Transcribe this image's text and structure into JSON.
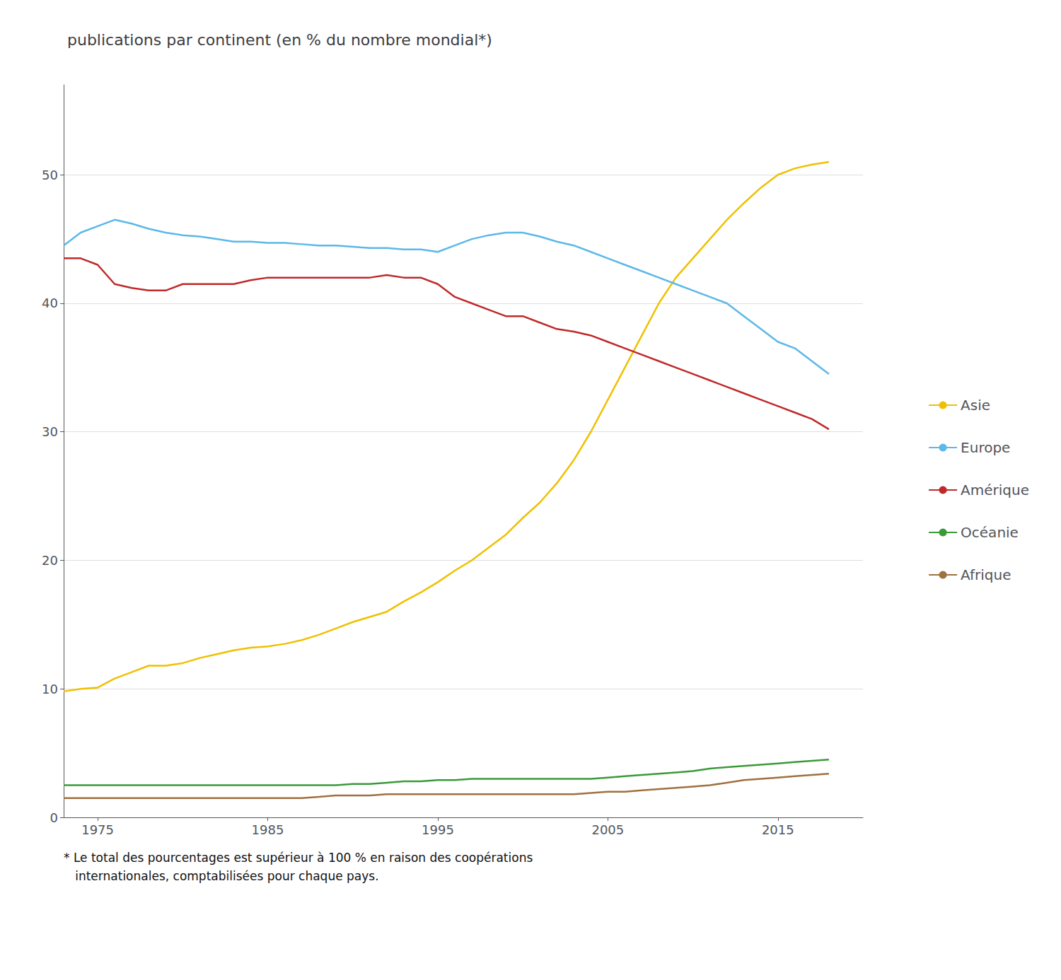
{
  "chart_data": {
    "type": "line",
    "title": "publications par continent (en % du nombre mondial*)",
    "annotations": [
      "* Le total des pourcentages est supérieur à 100 % en raison des coopérations\n   internationales, comptabilisées pour chaque pays."
    ],
    "x": [
      1973,
      1974,
      1975,
      1976,
      1977,
      1978,
      1979,
      1980,
      1981,
      1982,
      1983,
      1984,
      1985,
      1986,
      1987,
      1988,
      1989,
      1990,
      1991,
      1992,
      1993,
      1994,
      1995,
      1996,
      1997,
      1998,
      1999,
      2000,
      2001,
      2002,
      2003,
      2004,
      2005,
      2006,
      2007,
      2008,
      2009,
      2010,
      2011,
      2012,
      2013,
      2014,
      2015,
      2016,
      2017,
      2018
    ],
    "xlim": [
      1973,
      2020
    ],
    "xticks": [
      1975,
      1985,
      1995,
      2005,
      2015
    ],
    "ylim": [
      0,
      57
    ],
    "yticks": [
      0,
      10,
      20,
      30,
      40,
      50
    ],
    "grid": true,
    "legend": "right",
    "series": [
      {
        "name": "Asie",
        "color": "#f0c000",
        "values": [
          9.8,
          10.0,
          10.1,
          10.8,
          11.3,
          11.8,
          11.8,
          12.0,
          12.4,
          12.7,
          13.0,
          13.2,
          13.3,
          13.5,
          13.8,
          14.2,
          14.7,
          15.2,
          15.6,
          16.0,
          16.8,
          17.5,
          18.3,
          19.2,
          20.0,
          21.0,
          22.0,
          23.3,
          24.5,
          26.0,
          27.8,
          30.0,
          32.5,
          35.0,
          37.5,
          40.0,
          42.0,
          43.5,
          45.0,
          46.5,
          47.8,
          49.0,
          50.0,
          50.5,
          50.8,
          51.0
        ]
      },
      {
        "name": "Europe",
        "color": "#5bb8e8",
        "values": [
          44.5,
          45.5,
          46.0,
          46.5,
          46.2,
          45.8,
          45.5,
          45.3,
          45.2,
          45.0,
          44.8,
          44.8,
          44.7,
          44.7,
          44.6,
          44.5,
          44.5,
          44.4,
          44.3,
          44.3,
          44.2,
          44.2,
          44.0,
          44.5,
          45.0,
          45.3,
          45.5,
          45.5,
          45.2,
          44.8,
          44.5,
          44.0,
          43.5,
          43.0,
          42.5,
          42.0,
          41.5,
          41.0,
          40.5,
          40.0,
          39.0,
          38.0,
          37.0,
          36.5,
          35.5,
          34.5
        ]
      },
      {
        "name": "Amérique",
        "color": "#c0292a",
        "values": [
          43.5,
          43.5,
          43.0,
          41.5,
          41.2,
          41.0,
          41.0,
          41.5,
          41.5,
          41.5,
          41.5,
          41.8,
          42.0,
          42.0,
          42.0,
          42.0,
          42.0,
          42.0,
          42.0,
          42.2,
          42.0,
          42.0,
          41.5,
          40.5,
          40.0,
          39.5,
          39.0,
          39.0,
          38.5,
          38.0,
          37.8,
          37.5,
          37.0,
          36.5,
          36.0,
          35.5,
          35.0,
          34.5,
          34.0,
          33.5,
          33.0,
          32.5,
          32.0,
          31.5,
          31.0,
          30.2
        ]
      },
      {
        "name": "Océanie",
        "color": "#3a9a3a",
        "values": [
          2.5,
          2.5,
          2.5,
          2.5,
          2.5,
          2.5,
          2.5,
          2.5,
          2.5,
          2.5,
          2.5,
          2.5,
          2.5,
          2.5,
          2.5,
          2.5,
          2.5,
          2.6,
          2.6,
          2.7,
          2.8,
          2.8,
          2.9,
          2.9,
          3.0,
          3.0,
          3.0,
          3.0,
          3.0,
          3.0,
          3.0,
          3.0,
          3.1,
          3.2,
          3.3,
          3.4,
          3.5,
          3.6,
          3.8,
          3.9,
          4.0,
          4.1,
          4.2,
          4.3,
          4.4,
          4.5
        ]
      },
      {
        "name": "Afrique",
        "color": "#a07040",
        "values": [
          1.5,
          1.5,
          1.5,
          1.5,
          1.5,
          1.5,
          1.5,
          1.5,
          1.5,
          1.5,
          1.5,
          1.5,
          1.5,
          1.5,
          1.5,
          1.6,
          1.7,
          1.7,
          1.7,
          1.8,
          1.8,
          1.8,
          1.8,
          1.8,
          1.8,
          1.8,
          1.8,
          1.8,
          1.8,
          1.8,
          1.8,
          1.9,
          2.0,
          2.0,
          2.1,
          2.2,
          2.3,
          2.4,
          2.5,
          2.7,
          2.9,
          3.0,
          3.1,
          3.2,
          3.3,
          3.4
        ]
      }
    ]
  }
}
